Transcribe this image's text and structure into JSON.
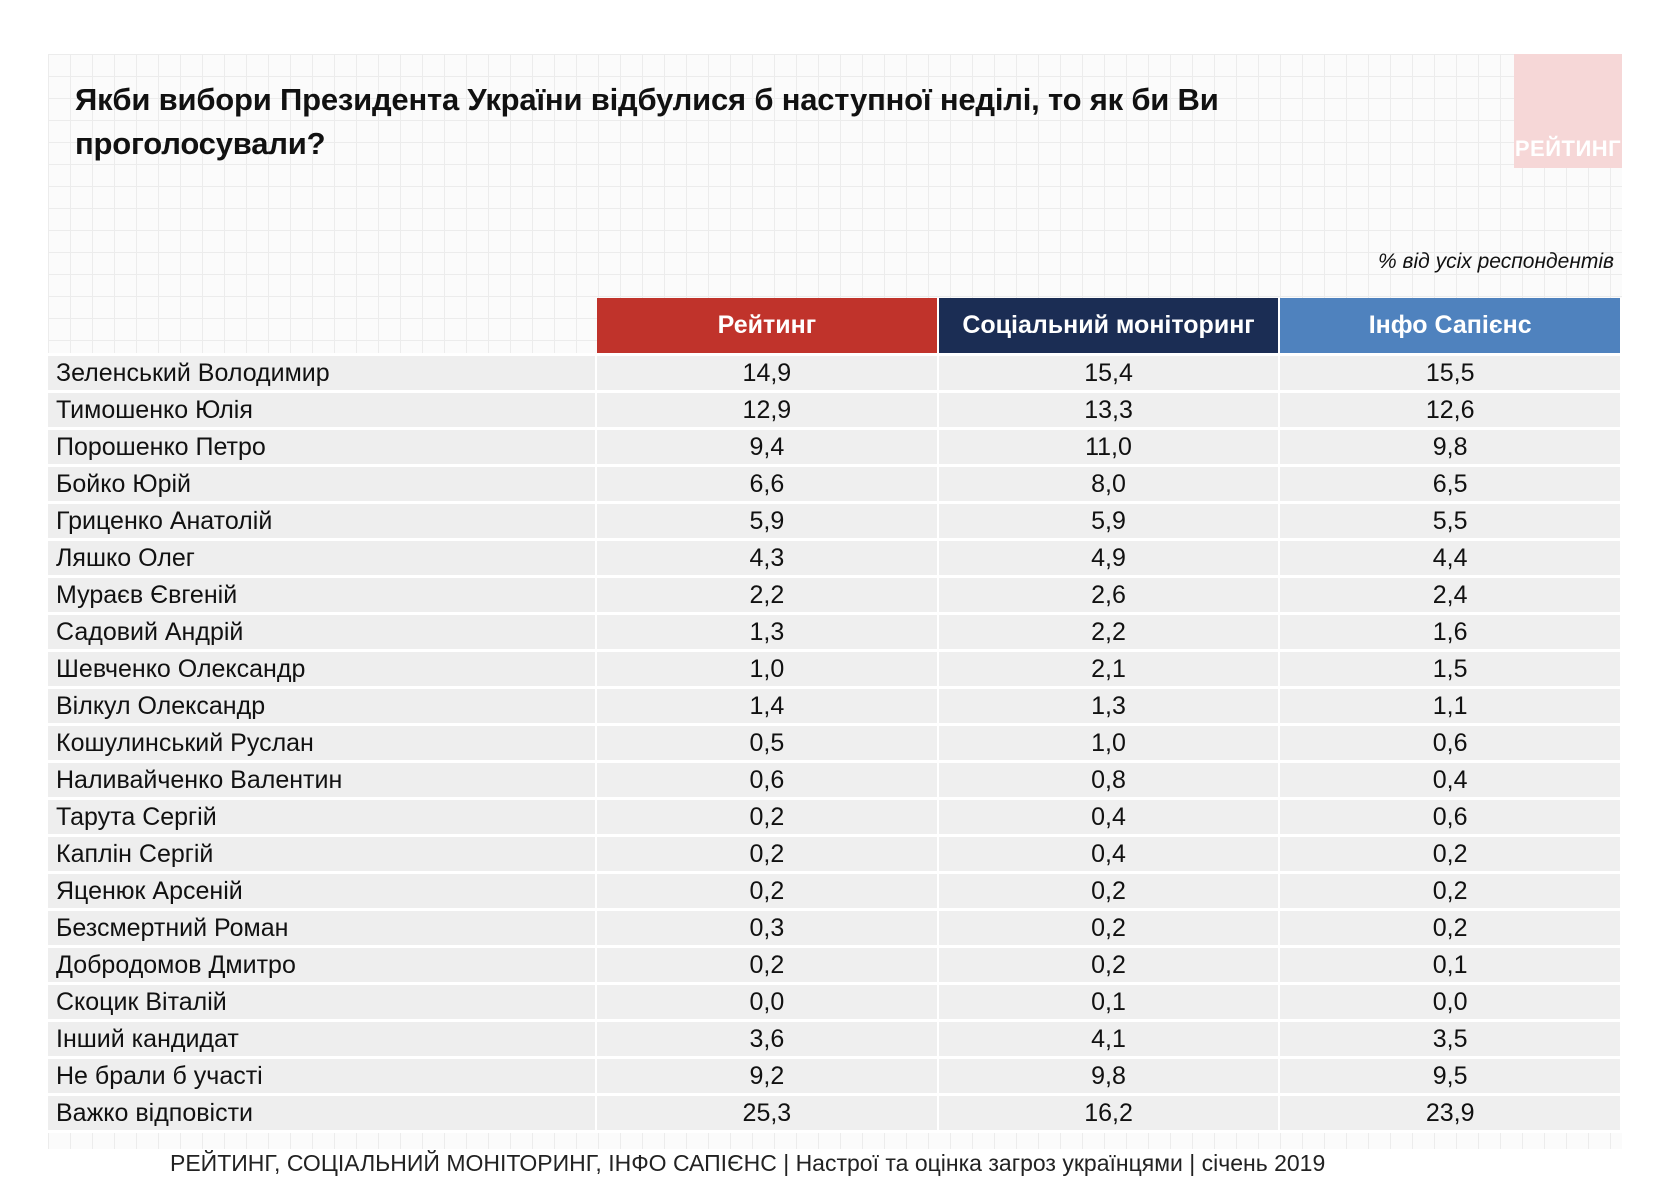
{
  "title": "Якби вибори Президента України відбулися б наступної неділі, то як би Ви проголосували?",
  "logo": "РЕЙТИНГ",
  "note": "% від усіх респондентів",
  "footer": "РЕЙТИНГ, СОЦІАЛЬНИЙ МОНІТОРИНГ, ІНФО САПІЄНС | Настрої та оцінка загроз українцями | січень 2019",
  "chart_data": {
    "type": "table",
    "columns": [
      {
        "name": "Рейтинг",
        "color": "#c0332b"
      },
      {
        "name": "Соціальний моніторинг",
        "color": "#1b2d54"
      },
      {
        "name": "Інфо Сапієнс",
        "color": "#4f82be"
      }
    ],
    "rows": [
      {
        "label": "Зеленський Володимир",
        "values": [
          "14,9",
          "15,4",
          "15,5"
        ]
      },
      {
        "label": "Тимошенко Юлія",
        "values": [
          "12,9",
          "13,3",
          "12,6"
        ]
      },
      {
        "label": "Порошенко Петро",
        "values": [
          "9,4",
          "11,0",
          "9,8"
        ]
      },
      {
        "label": "Бойко Юрій",
        "values": [
          "6,6",
          "8,0",
          "6,5"
        ]
      },
      {
        "label": "Гриценко Анатолій",
        "values": [
          "5,9",
          "5,9",
          "5,5"
        ]
      },
      {
        "label": "Ляшко Олег",
        "values": [
          "4,3",
          "4,9",
          "4,4"
        ]
      },
      {
        "label": "Мураєв Євгеній",
        "values": [
          "2,2",
          "2,6",
          "2,4"
        ]
      },
      {
        "label": "Садовий Андрій",
        "values": [
          "1,3",
          "2,2",
          "1,6"
        ]
      },
      {
        "label": "Шевченко Олександр",
        "values": [
          "1,0",
          "2,1",
          "1,5"
        ]
      },
      {
        "label": "Вілкул Олександр",
        "values": [
          "1,4",
          "1,3",
          "1,1"
        ]
      },
      {
        "label": "Кошулинський Руслан",
        "values": [
          "0,5",
          "1,0",
          "0,6"
        ]
      },
      {
        "label": "Наливайченко Валентин",
        "values": [
          "0,6",
          "0,8",
          "0,4"
        ]
      },
      {
        "label": "Тарута Сергій",
        "values": [
          "0,2",
          "0,4",
          "0,6"
        ]
      },
      {
        "label": "Каплін Сергій",
        "values": [
          "0,2",
          "0,4",
          "0,2"
        ]
      },
      {
        "label": "Яценюк Арсеній",
        "values": [
          "0,2",
          "0,2",
          "0,2"
        ]
      },
      {
        "label": "Безсмертний Роман",
        "values": [
          "0,3",
          "0,2",
          "0,2"
        ]
      },
      {
        "label": "Добродомов Дмитро",
        "values": [
          "0,2",
          "0,2",
          "0,1"
        ]
      },
      {
        "label": "Скоцик Віталій",
        "values": [
          "0,0",
          "0,1",
          "0,0"
        ]
      },
      {
        "label": "Інший кандидат",
        "values": [
          "3,6",
          "4,1",
          "3,5"
        ]
      },
      {
        "label": "Не брали б участі",
        "values": [
          "9,2",
          "9,8",
          "9,5"
        ]
      },
      {
        "label": "Важко відповісти",
        "values": [
          "25,3",
          "16,2",
          "23,9"
        ]
      }
    ]
  }
}
